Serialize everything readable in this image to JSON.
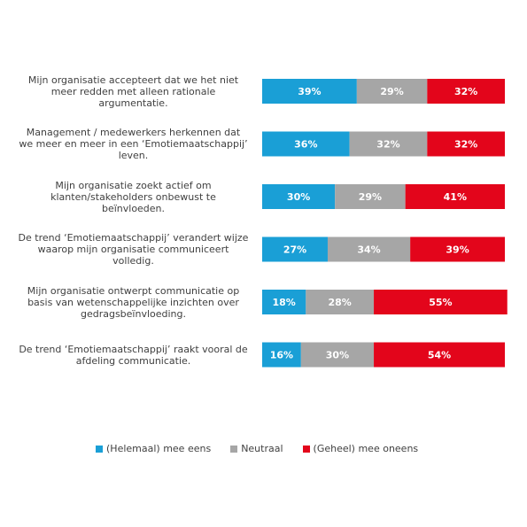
{
  "chart_data": {
    "type": "bar",
    "orientation": "horizontal",
    "stacked": true,
    "normalized": true,
    "categories": [
      "Mijn organisatie accepteert dat we het niet meer redden met alleen rationale argumentatie.",
      "Management / medewerkers herkennen dat we meer en meer in een ‘Emotiemaatschappij’ leven.",
      "Mijn organisatie zoekt actief om klanten/stakeholders onbewust te beïnvloeden.",
      "De trend ‘Emotiemaatschappij’ verandert wijze waarop mijn organisatie communiceert volledig.",
      "Mijn organisatie ontwerpt communicatie op basis van wetenschappelijke inzichten over gedragsbeïnvloeding.",
      "De trend ‘Emotiemaatschappij’ raakt vooral de afdeling communicatie."
    ],
    "category_lines": [
      [
        "Mijn organisatie accepteert dat we het niet",
        "meer redden met alleen rationale",
        "argumentatie."
      ],
      [
        "Management / medewerkers herkennen dat",
        "we meer en meer in een ‘Emotiemaatschappij’",
        "leven."
      ],
      [
        "Mijn organisatie zoekt actief om",
        "klanten/stakeholders onbewust te",
        "beïnvloeden."
      ],
      [
        "De trend ‘Emotiemaatschappij’ verandert wijze",
        "waarop mijn organisatie communiceert",
        "volledig."
      ],
      [
        "Mijn organisatie ontwerpt communicatie op",
        "basis van wetenschappelijke inzichten over",
        "gedragsbeïnvloeding."
      ],
      [
        "De trend ‘Emotiemaatschappij’ raakt vooral de",
        "afdeling communicatie."
      ]
    ],
    "series": [
      {
        "name": "(Helemaal) mee eens",
        "color": "#1a9fd6",
        "values": [
          39,
          36,
          30,
          27,
          18,
          16
        ],
        "labels": [
          "39%",
          "36%",
          "30%",
          "27%",
          "18%",
          "16%"
        ]
      },
      {
        "name": "Neutraal",
        "color": "#a6a6a6",
        "values": [
          29,
          32,
          29,
          34,
          28,
          30
        ],
        "labels": [
          "29%",
          "32%",
          "29%",
          "34%",
          "28%",
          "30%"
        ]
      },
      {
        "name": "(Geheel) mee oneens",
        "color": "#e3051b",
        "values": [
          32,
          32,
          41,
          39,
          55,
          54
        ],
        "labels": [
          "32%",
          "32%",
          "41%",
          "39%",
          "55%",
          "54%"
        ]
      }
    ],
    "legend": "bottom",
    "grid": false,
    "xlim": [
      0,
      100
    ]
  }
}
